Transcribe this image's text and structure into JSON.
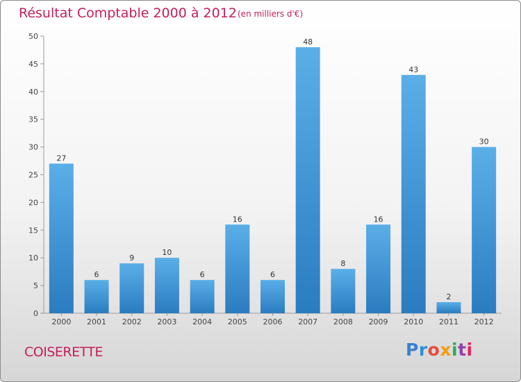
{
  "colors": {
    "title": "#c41e5a",
    "bar_top": "#5aafe8",
    "bar_bottom": "#2a7cc0",
    "logo": [
      "#3a7fd0",
      "#2a8fd8",
      "#e74c3c",
      "#f39c12",
      "#27ae60",
      "#8e44ad",
      "#e91e63"
    ]
  },
  "commune": "COISERETTE",
  "logo_text": "Proxiti",
  "chart_data": {
    "type": "bar",
    "title": "Résultat Comptable 2000 à 2012",
    "subtitle": "(en milliers d'€)",
    "categories": [
      "2000",
      "2001",
      "2002",
      "2003",
      "2004",
      "2005",
      "2006",
      "2007",
      "2008",
      "2009",
      "2010",
      "2011",
      "2012"
    ],
    "values": [
      27,
      6,
      9,
      10,
      6,
      16,
      6,
      48,
      8,
      16,
      43,
      2,
      30
    ],
    "ylim": [
      0,
      50
    ],
    "yticks": [
      0,
      5,
      10,
      15,
      20,
      25,
      30,
      35,
      40,
      45,
      50
    ],
    "grid": false,
    "xlabel": "",
    "ylabel": ""
  }
}
